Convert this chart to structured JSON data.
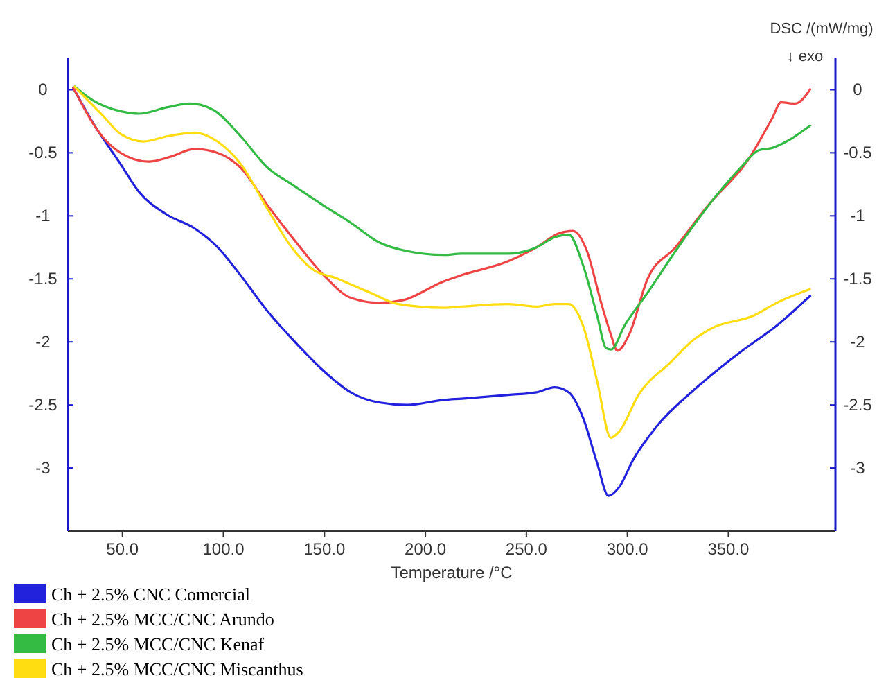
{
  "chart_data": {
    "type": "line",
    "xlabel": "Temperature /°C",
    "y2label": "DSC /(mW/mg)",
    "annotations": [
      "↓ exo"
    ],
    "xlim": [
      23,
      403
    ],
    "xticks": [
      {
        "value": 50,
        "label": "50.0"
      },
      {
        "value": 100,
        "label": "100.0"
      },
      {
        "value": 150,
        "label": "150.0"
      },
      {
        "value": 200,
        "label": "200.0"
      },
      {
        "value": 250,
        "label": "250.0"
      },
      {
        "value": 300,
        "label": "300.0"
      },
      {
        "value": 350,
        "label": "350.0"
      }
    ],
    "ylim": [
      -3.5,
      0.25
    ],
    "yticks": [
      0,
      -0.5,
      -1,
      -1.5,
      -2,
      -2.5,
      -3
    ],
    "y2lim": [
      -3.5,
      0.25
    ],
    "y2ticks": [
      0,
      -0.5,
      -1,
      -1.5,
      -2,
      -2.5,
      -3
    ],
    "legend": "bottom left",
    "grid": false,
    "marker": "none",
    "line_style": "solid",
    "series": [
      {
        "name": "Ch + 2.5% CNC Comercial",
        "color": "#2222dd",
        "x": [
          25.5,
          35.3,
          49.1,
          58.2,
          72,
          85.7,
          97.2,
          108.4,
          122,
          136,
          149.6,
          163,
          177,
          191,
          209,
          218,
          241,
          255,
          264,
          271,
          278,
          285,
          290.6,
          296,
          303,
          314.5,
          333,
          356,
          374,
          390.8
        ],
        "values": [
          0.02,
          -0.26,
          -0.59,
          -0.81,
          -0.99,
          -1.1,
          -1.25,
          -1.47,
          -1.76,
          -2.01,
          -2.23,
          -2.4,
          -2.48,
          -2.5,
          -2.46,
          -2.45,
          -2.42,
          -2.4,
          -2.36,
          -2.4,
          -2.6,
          -2.96,
          -3.22,
          -3.15,
          -2.93,
          -2.67,
          -2.38,
          -2.08,
          -1.87,
          -1.63
        ]
      },
      {
        "name": "Ch + 2.5% MCC/CNC Arundo",
        "color": "#ee4444",
        "x": [
          25.5,
          40,
          49,
          62.8,
          74,
          85.7,
          97,
          108.6,
          122,
          136,
          149.6,
          163,
          177,
          188.7,
          209,
          218,
          241,
          255,
          266,
          273,
          280,
          287,
          291.8,
          295,
          300.9,
          310,
          323.8,
          339.8,
          360,
          371.9,
          376,
          383,
          390.8
        ],
        "values": [
          0.02,
          -0.37,
          -0.5,
          -0.57,
          -0.53,
          -0.47,
          -0.5,
          -0.62,
          -0.92,
          -1.21,
          -1.47,
          -1.65,
          -1.69,
          -1.67,
          -1.52,
          -1.47,
          -1.36,
          -1.25,
          -1.14,
          -1.12,
          -1.28,
          -1.69,
          -1.94,
          -2.07,
          -1.94,
          -1.5,
          -1.25,
          -0.92,
          -0.55,
          -0.22,
          -0.1,
          -0.11,
          0.01
        ]
      },
      {
        "name": "Ch + 2.5% MCC/CNC Kenaf",
        "color": "#33bb44",
        "x": [
          26,
          35,
          49,
          58.2,
          72,
          83.4,
          95,
          108.6,
          122,
          133.8,
          149.8,
          163.5,
          177,
          191,
          209,
          218,
          241,
          255,
          264,
          271,
          278,
          285,
          289.5,
          292,
          298.6,
          310,
          323.8,
          342,
          356,
          365,
          372,
          378.8,
          390.8
        ],
        "values": [
          0.03,
          -0.08,
          -0.17,
          -0.19,
          -0.14,
          -0.11,
          -0.16,
          -0.37,
          -0.62,
          -0.75,
          -0.92,
          -1.06,
          -1.21,
          -1.28,
          -1.31,
          -1.3,
          -1.3,
          -1.25,
          -1.17,
          -1.15,
          -1.39,
          -1.79,
          -2.05,
          -2.06,
          -1.87,
          -1.61,
          -1.28,
          -0.88,
          -0.62,
          -0.48,
          -0.46,
          -0.41,
          -0.28
        ]
      },
      {
        "name": "Ch + 2.5% MCC/CNC Miscanthus",
        "color": "#ffdd11",
        "x": [
          26,
          40,
          49,
          60.5,
          72,
          85.7,
          97,
          108.6,
          122,
          133.8,
          143,
          156.7,
          172.7,
          186.5,
          209,
          218,
          241,
          255,
          264,
          271,
          278,
          285,
          291.8,
          296,
          305.5,
          321.5,
          333,
          342,
          362.7,
          374,
          390.8
        ],
        "values": [
          0.03,
          -0.2,
          -0.35,
          -0.41,
          -0.37,
          -0.34,
          -0.41,
          -0.59,
          -0.95,
          -1.25,
          -1.41,
          -1.5,
          -1.61,
          -1.7,
          -1.73,
          -1.72,
          -1.7,
          -1.72,
          -1.7,
          -1.7,
          -1.87,
          -2.31,
          -2.76,
          -2.71,
          -2.42,
          -2.16,
          -1.98,
          -1.89,
          -1.79,
          -1.69,
          -1.58
        ]
      }
    ]
  }
}
